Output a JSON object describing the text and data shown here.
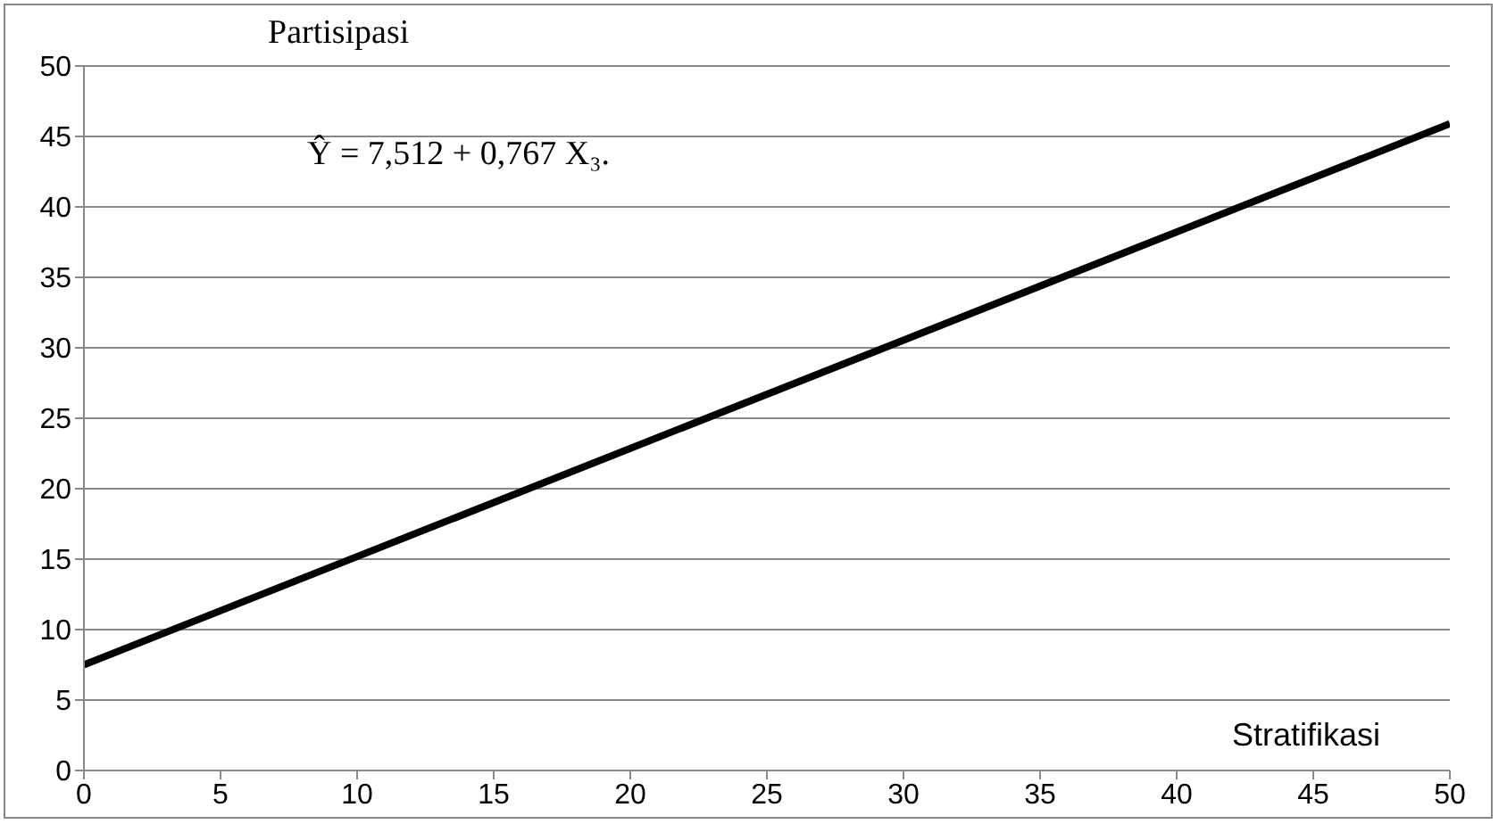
{
  "chart_data": {
    "type": "line",
    "xlabel": "Stratifikasi",
    "ylabel": "Partisipasi",
    "annotations": [
      "Ŷ = 7,512 + 0,767 X₃."
    ],
    "x": [
      0,
      50
    ],
    "series": [
      {
        "color": "#000000",
        "values": [
          7.5,
          45.9
        ]
      }
    ],
    "xlim": [
      0,
      50
    ],
    "xticks": [
      0,
      5,
      10,
      15,
      20,
      25,
      30,
      35,
      40,
      45,
      50
    ],
    "ylim": [
      0,
      50
    ],
    "yticks": [
      0,
      5,
      10,
      15,
      20,
      25,
      30,
      35,
      40,
      45,
      50
    ],
    "grid": "y",
    "marker": "none",
    "line_style": "solid"
  }
}
